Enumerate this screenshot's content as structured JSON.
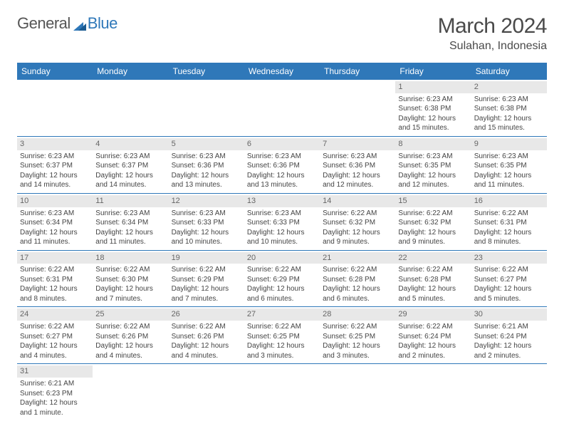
{
  "logo": {
    "textA": "General",
    "textB": "Blue"
  },
  "header": {
    "monthTitle": "March 2024",
    "location": "Sulahan, Indonesia"
  },
  "colors": {
    "headerBar": "#2f78b9",
    "dayStrip": "#e8e8e8",
    "text": "#444444",
    "background": "#ffffff"
  },
  "weekdays": [
    "Sunday",
    "Monday",
    "Tuesday",
    "Wednesday",
    "Thursday",
    "Friday",
    "Saturday"
  ],
  "grid": {
    "rows": 6,
    "cols": 7,
    "startOffset": 5,
    "daysInMonth": 31
  },
  "days": {
    "1": {
      "sunrise": "Sunrise: 6:23 AM",
      "sunset": "Sunset: 6:38 PM",
      "day1": "Daylight: 12 hours",
      "day2": "and 15 minutes."
    },
    "2": {
      "sunrise": "Sunrise: 6:23 AM",
      "sunset": "Sunset: 6:38 PM",
      "day1": "Daylight: 12 hours",
      "day2": "and 15 minutes."
    },
    "3": {
      "sunrise": "Sunrise: 6:23 AM",
      "sunset": "Sunset: 6:37 PM",
      "day1": "Daylight: 12 hours",
      "day2": "and 14 minutes."
    },
    "4": {
      "sunrise": "Sunrise: 6:23 AM",
      "sunset": "Sunset: 6:37 PM",
      "day1": "Daylight: 12 hours",
      "day2": "and 14 minutes."
    },
    "5": {
      "sunrise": "Sunrise: 6:23 AM",
      "sunset": "Sunset: 6:36 PM",
      "day1": "Daylight: 12 hours",
      "day2": "and 13 minutes."
    },
    "6": {
      "sunrise": "Sunrise: 6:23 AM",
      "sunset": "Sunset: 6:36 PM",
      "day1": "Daylight: 12 hours",
      "day2": "and 13 minutes."
    },
    "7": {
      "sunrise": "Sunrise: 6:23 AM",
      "sunset": "Sunset: 6:36 PM",
      "day1": "Daylight: 12 hours",
      "day2": "and 12 minutes."
    },
    "8": {
      "sunrise": "Sunrise: 6:23 AM",
      "sunset": "Sunset: 6:35 PM",
      "day1": "Daylight: 12 hours",
      "day2": "and 12 minutes."
    },
    "9": {
      "sunrise": "Sunrise: 6:23 AM",
      "sunset": "Sunset: 6:35 PM",
      "day1": "Daylight: 12 hours",
      "day2": "and 11 minutes."
    },
    "10": {
      "sunrise": "Sunrise: 6:23 AM",
      "sunset": "Sunset: 6:34 PM",
      "day1": "Daylight: 12 hours",
      "day2": "and 11 minutes."
    },
    "11": {
      "sunrise": "Sunrise: 6:23 AM",
      "sunset": "Sunset: 6:34 PM",
      "day1": "Daylight: 12 hours",
      "day2": "and 11 minutes."
    },
    "12": {
      "sunrise": "Sunrise: 6:23 AM",
      "sunset": "Sunset: 6:33 PM",
      "day1": "Daylight: 12 hours",
      "day2": "and 10 minutes."
    },
    "13": {
      "sunrise": "Sunrise: 6:23 AM",
      "sunset": "Sunset: 6:33 PM",
      "day1": "Daylight: 12 hours",
      "day2": "and 10 minutes."
    },
    "14": {
      "sunrise": "Sunrise: 6:22 AM",
      "sunset": "Sunset: 6:32 PM",
      "day1": "Daylight: 12 hours",
      "day2": "and 9 minutes."
    },
    "15": {
      "sunrise": "Sunrise: 6:22 AM",
      "sunset": "Sunset: 6:32 PM",
      "day1": "Daylight: 12 hours",
      "day2": "and 9 minutes."
    },
    "16": {
      "sunrise": "Sunrise: 6:22 AM",
      "sunset": "Sunset: 6:31 PM",
      "day1": "Daylight: 12 hours",
      "day2": "and 8 minutes."
    },
    "17": {
      "sunrise": "Sunrise: 6:22 AM",
      "sunset": "Sunset: 6:31 PM",
      "day1": "Daylight: 12 hours",
      "day2": "and 8 minutes."
    },
    "18": {
      "sunrise": "Sunrise: 6:22 AM",
      "sunset": "Sunset: 6:30 PM",
      "day1": "Daylight: 12 hours",
      "day2": "and 7 minutes."
    },
    "19": {
      "sunrise": "Sunrise: 6:22 AM",
      "sunset": "Sunset: 6:29 PM",
      "day1": "Daylight: 12 hours",
      "day2": "and 7 minutes."
    },
    "20": {
      "sunrise": "Sunrise: 6:22 AM",
      "sunset": "Sunset: 6:29 PM",
      "day1": "Daylight: 12 hours",
      "day2": "and 6 minutes."
    },
    "21": {
      "sunrise": "Sunrise: 6:22 AM",
      "sunset": "Sunset: 6:28 PM",
      "day1": "Daylight: 12 hours",
      "day2": "and 6 minutes."
    },
    "22": {
      "sunrise": "Sunrise: 6:22 AM",
      "sunset": "Sunset: 6:28 PM",
      "day1": "Daylight: 12 hours",
      "day2": "and 5 minutes."
    },
    "23": {
      "sunrise": "Sunrise: 6:22 AM",
      "sunset": "Sunset: 6:27 PM",
      "day1": "Daylight: 12 hours",
      "day2": "and 5 minutes."
    },
    "24": {
      "sunrise": "Sunrise: 6:22 AM",
      "sunset": "Sunset: 6:27 PM",
      "day1": "Daylight: 12 hours",
      "day2": "and 4 minutes."
    },
    "25": {
      "sunrise": "Sunrise: 6:22 AM",
      "sunset": "Sunset: 6:26 PM",
      "day1": "Daylight: 12 hours",
      "day2": "and 4 minutes."
    },
    "26": {
      "sunrise": "Sunrise: 6:22 AM",
      "sunset": "Sunset: 6:26 PM",
      "day1": "Daylight: 12 hours",
      "day2": "and 4 minutes."
    },
    "27": {
      "sunrise": "Sunrise: 6:22 AM",
      "sunset": "Sunset: 6:25 PM",
      "day1": "Daylight: 12 hours",
      "day2": "and 3 minutes."
    },
    "28": {
      "sunrise": "Sunrise: 6:22 AM",
      "sunset": "Sunset: 6:25 PM",
      "day1": "Daylight: 12 hours",
      "day2": "and 3 minutes."
    },
    "29": {
      "sunrise": "Sunrise: 6:22 AM",
      "sunset": "Sunset: 6:24 PM",
      "day1": "Daylight: 12 hours",
      "day2": "and 2 minutes."
    },
    "30": {
      "sunrise": "Sunrise: 6:21 AM",
      "sunset": "Sunset: 6:24 PM",
      "day1": "Daylight: 12 hours",
      "day2": "and 2 minutes."
    },
    "31": {
      "sunrise": "Sunrise: 6:21 AM",
      "sunset": "Sunset: 6:23 PM",
      "day1": "Daylight: 12 hours",
      "day2": "and 1 minute."
    }
  }
}
